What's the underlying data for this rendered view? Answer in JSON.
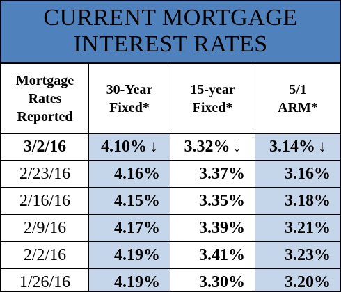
{
  "title": {
    "line1": "CURRENT MORTGAGE",
    "line2": "INTEREST RATES"
  },
  "headers": {
    "col1": [
      "Mortgage",
      "Rates",
      "Reported"
    ],
    "col2": [
      "30-Year",
      "Fixed*"
    ],
    "col3": [
      "15-year",
      "Fixed*"
    ],
    "col4": [
      "5/1",
      "ARM*"
    ]
  },
  "rows": [
    {
      "date": "3/2/16",
      "y30": "4.10%",
      "y15": "3.32%",
      "arm": "3.14%",
      "arrow": "↓"
    },
    {
      "date": "2/23/16",
      "y30": "4.16%",
      "y15": "3.37%",
      "arm": "3.16%"
    },
    {
      "date": "2/16/16",
      "y30": "4.15%",
      "y15": "3.35%",
      "arm": "3.18%"
    },
    {
      "date": "2/9/16",
      "y30": "4.17%",
      "y15": "3.39%",
      "arm": "3.21%"
    },
    {
      "date": "2/2/16",
      "y30": "4.19%",
      "y15": "3.41%",
      "arm": "3.23%"
    },
    {
      "date": "1/26/16",
      "y30": "4.19%",
      "y15": "3.30%",
      "arm": "3.20%"
    }
  ],
  "colors": {
    "title_bg": "#4f81bd",
    "cell_bg": "#c5d5ea"
  }
}
